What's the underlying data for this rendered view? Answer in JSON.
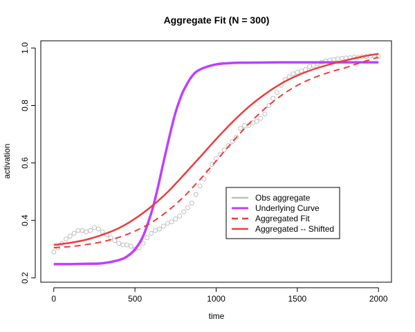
{
  "chart_data": {
    "type": "line",
    "title": "Aggregate Fit (N = 300)",
    "xlabel": "time",
    "ylabel": "activation",
    "xlim": [
      -80,
      2080
    ],
    "ylim": [
      0.185,
      1.025
    ],
    "x_ticks": [
      0,
      500,
      1000,
      1500,
      2000
    ],
    "y_ticks": [
      0.2,
      0.4,
      0.6,
      0.8,
      1.0
    ],
    "x_tick_labels": [
      "0",
      "500",
      "1000",
      "1500",
      "2000"
    ],
    "y_tick_labels": [
      "0.2",
      "0.4",
      "0.6",
      "0.8",
      "1.0"
    ],
    "grid": false,
    "legend_position": "center-right",
    "series": [
      {
        "name": "Obs aggregate",
        "style": "points",
        "color": "#bebebe",
        "x": [
          0,
          25,
          50,
          75,
          100,
          125,
          150,
          175,
          200,
          225,
          250,
          275,
          300,
          325,
          350,
          375,
          400,
          425,
          450,
          475,
          500,
          525,
          550,
          575,
          600,
          625,
          650,
          675,
          700,
          725,
          750,
          775,
          800,
          825,
          850,
          875,
          900,
          925,
          950,
          975,
          1000,
          1025,
          1050,
          1075,
          1100,
          1125,
          1150,
          1175,
          1200,
          1225,
          1250,
          1275,
          1300,
          1325,
          1350,
          1375,
          1400,
          1425,
          1450,
          1475,
          1500,
          1525,
          1550,
          1575,
          1600,
          1625,
          1650,
          1675,
          1700,
          1725,
          1750,
          1775,
          1800,
          1825,
          1850,
          1875,
          1900,
          1925,
          1950,
          1975,
          2000
        ],
        "values": [
          0.29,
          0.305,
          0.32,
          0.335,
          0.345,
          0.355,
          0.365,
          0.365,
          0.36,
          0.365,
          0.375,
          0.37,
          0.36,
          0.35,
          0.34,
          0.33,
          0.32,
          0.315,
          0.315,
          0.31,
          0.3,
          0.305,
          0.32,
          0.34,
          0.355,
          0.365,
          0.37,
          0.38,
          0.39,
          0.395,
          0.405,
          0.415,
          0.43,
          0.445,
          0.46,
          0.49,
          0.52,
          0.545,
          0.57,
          0.595,
          0.615,
          0.63,
          0.645,
          0.66,
          0.675,
          0.69,
          0.72,
          0.73,
          0.73,
          0.74,
          0.745,
          0.755,
          0.77,
          0.8,
          0.825,
          0.845,
          0.87,
          0.89,
          0.9,
          0.91,
          0.915,
          0.92,
          0.925,
          0.935,
          0.94,
          0.945,
          0.95,
          0.955,
          0.958,
          0.96,
          0.962,
          0.964,
          0.965,
          0.966,
          0.968,
          0.968,
          0.97,
          0.97,
          0.972,
          0.972,
          0.97
        ]
      },
      {
        "name": "Underlying Curve",
        "style": "line",
        "color": "#bf3eff",
        "x": [
          0,
          100,
          200,
          300,
          400,
          450,
          500,
          550,
          600,
          625,
          650,
          675,
          700,
          725,
          750,
          775,
          800,
          850,
          900,
          1000,
          1100,
          1200,
          1400,
          1600,
          1800,
          2000
        ],
        "values": [
          0.248,
          0.248,
          0.249,
          0.251,
          0.262,
          0.274,
          0.299,
          0.345,
          0.425,
          0.477,
          0.537,
          0.601,
          0.662,
          0.722,
          0.776,
          0.818,
          0.853,
          0.901,
          0.925,
          0.943,
          0.948,
          0.949,
          0.95,
          0.95,
          0.95,
          0.95
        ]
      },
      {
        "name": "Aggregated Fit",
        "style": "dashed",
        "color": "#ee3b3b",
        "x": [
          0,
          100,
          200,
          300,
          400,
          500,
          600,
          700,
          800,
          900,
          1000,
          1100,
          1200,
          1300,
          1400,
          1500,
          1600,
          1700,
          1800,
          1900,
          2000
        ],
        "values": [
          0.305,
          0.309,
          0.316,
          0.326,
          0.341,
          0.363,
          0.392,
          0.432,
          0.482,
          0.542,
          0.607,
          0.673,
          0.735,
          0.789,
          0.834,
          0.87,
          0.896,
          0.916,
          0.932,
          0.951,
          0.968
        ]
      },
      {
        "name": "Aggregated -- Shifted",
        "style": "line",
        "color": "#ee3b3b",
        "x": [
          0,
          100,
          200,
          300,
          400,
          500,
          600,
          700,
          800,
          900,
          1000,
          1100,
          1200,
          1300,
          1400,
          1500,
          1600,
          1700,
          1800,
          1900,
          2000
        ],
        "values": [
          0.315,
          0.322,
          0.333,
          0.35,
          0.373,
          0.406,
          0.448,
          0.498,
          0.558,
          0.62,
          0.683,
          0.742,
          0.795,
          0.839,
          0.876,
          0.904,
          0.926,
          0.943,
          0.957,
          0.97,
          0.98
        ]
      }
    ]
  }
}
